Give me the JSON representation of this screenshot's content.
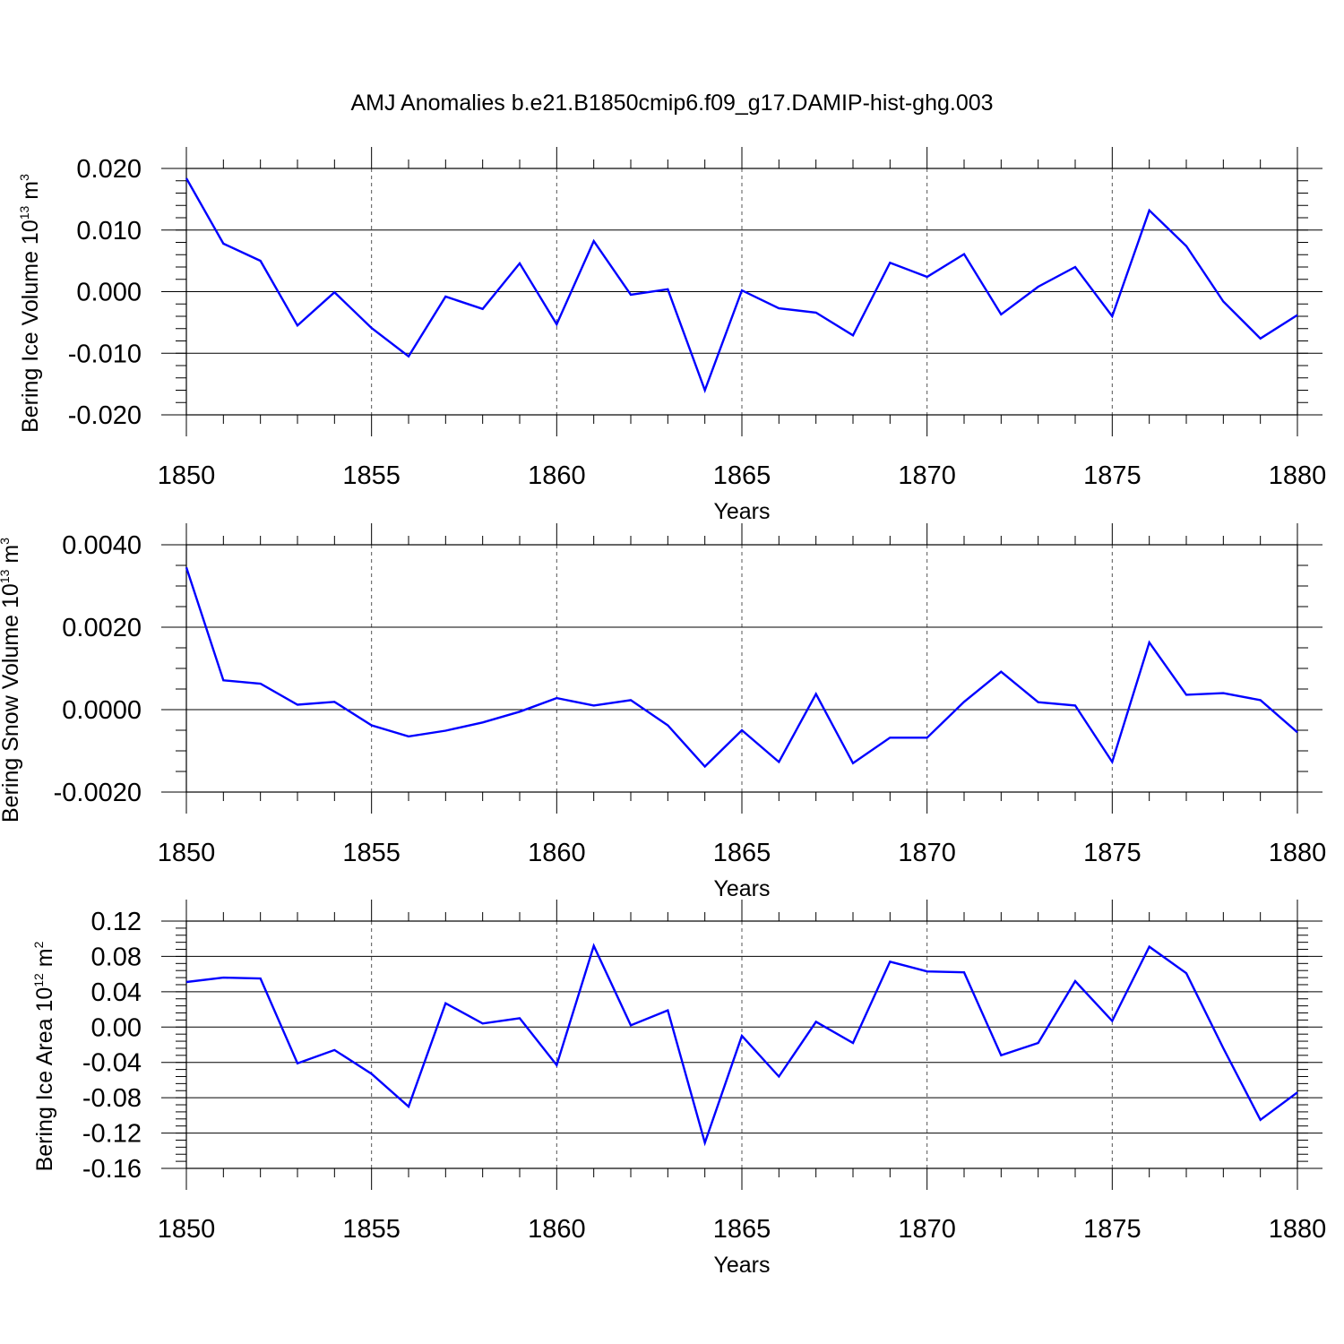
{
  "figure": {
    "title": "AMJ Anomalies b.e21.B1850cmip6.f09_g17.DAMIP-hist-ghg.003"
  },
  "chart_data": [
    {
      "type": "line",
      "ylabel": "Bering Ice Volume 10",
      "ylabel_sup": "13",
      "ylabel_unit": " m",
      "ylabel_unit_sup": "3",
      "xlabel": "Years",
      "xlim": [
        1850,
        1880
      ],
      "ylim": [
        -0.02,
        0.02
      ],
      "x_ticks": [
        1850,
        1855,
        1860,
        1865,
        1870,
        1875,
        1880
      ],
      "y_ticks": [
        -0.02,
        -0.01,
        0.0,
        0.01,
        0.02
      ],
      "y_tick_labels": [
        "-0.020",
        "-0.010",
        "0.000",
        "0.010",
        "0.020"
      ],
      "y_minor_step": 0.002,
      "grid": "vertical dashed at major x ticks",
      "line_color": "#0000ff",
      "series": [
        {
          "x": [
            1850,
            1851,
            1852,
            1853,
            1854,
            1855,
            1856,
            1857,
            1858,
            1859,
            1860,
            1861,
            1862,
            1863,
            1864,
            1865,
            1866,
            1867,
            1868,
            1869,
            1870,
            1871,
            1872,
            1873,
            1874,
            1875,
            1876,
            1877,
            1878,
            1879,
            1880
          ],
          "values": [
            0.0184,
            0.0078,
            0.005,
            -0.0055,
            -0.0001,
            -0.0059,
            -0.0105,
            -0.0008,
            -0.0028,
            0.0046,
            -0.0053,
            0.0082,
            -0.0005,
            0.0004,
            -0.016,
            0.0002,
            -0.0027,
            -0.0034,
            -0.0071,
            0.0047,
            0.0024,
            0.0061,
            -0.0037,
            0.0008,
            0.004,
            -0.004,
            0.0132,
            0.0074,
            -0.0016,
            -0.0076,
            -0.0038
          ]
        }
      ]
    },
    {
      "type": "line",
      "ylabel": "Bering Snow Volume 10",
      "ylabel_sup": "13",
      "ylabel_unit": " m",
      "ylabel_unit_sup": "3",
      "xlabel": "Years",
      "xlim": [
        1850,
        1880
      ],
      "ylim": [
        -0.002,
        0.004
      ],
      "x_ticks": [
        1850,
        1855,
        1860,
        1865,
        1870,
        1875,
        1880
      ],
      "y_ticks": [
        -0.002,
        0.0,
        0.002,
        0.004
      ],
      "y_tick_labels": [
        "-0.0020",
        "0.0000",
        "0.0020",
        "0.0040"
      ],
      "y_minor_step": 0.0005,
      "grid": "vertical dashed at major x ticks",
      "line_color": "#0000ff",
      "series": [
        {
          "x": [
            1850,
            1851,
            1852,
            1853,
            1854,
            1855,
            1856,
            1857,
            1858,
            1859,
            1860,
            1861,
            1862,
            1863,
            1864,
            1865,
            1866,
            1867,
            1868,
            1869,
            1870,
            1871,
            1872,
            1873,
            1874,
            1875,
            1876,
            1877,
            1878,
            1879,
            1880
          ],
          "values": [
            0.00345,
            0.00071,
            0.00063,
            0.00012,
            0.00019,
            -0.00038,
            -0.00065,
            -0.00051,
            -0.00031,
            -5e-05,
            0.00028,
            0.0001,
            0.00023,
            -0.00038,
            -0.00138,
            -0.0005,
            -0.00127,
            0.00038,
            -0.0013,
            -0.00068,
            -0.00068,
            0.00019,
            0.00092,
            0.00018,
            0.0001,
            -0.00127,
            0.00163,
            0.00036,
            0.0004,
            0.00023,
            -0.00055
          ]
        }
      ]
    },
    {
      "type": "line",
      "ylabel": "Bering Ice Area 10",
      "ylabel_sup": "12",
      "ylabel_unit": " m",
      "ylabel_unit_sup": "2",
      "xlabel": "Years",
      "xlim": [
        1850,
        1880
      ],
      "ylim": [
        -0.16,
        0.12
      ],
      "x_ticks": [
        1850,
        1855,
        1860,
        1865,
        1870,
        1875,
        1880
      ],
      "y_ticks": [
        -0.16,
        -0.12,
        -0.08,
        -0.04,
        0.0,
        0.04,
        0.08,
        0.12
      ],
      "y_tick_labels": [
        "-0.16",
        "-0.12",
        "-0.08",
        "-0.04",
        "0.00",
        "0.04",
        "0.08",
        "0.12"
      ],
      "y_minor_step": 0.008,
      "grid": "vertical dashed at major x ticks",
      "line_color": "#0000ff",
      "series": [
        {
          "x": [
            1850,
            1851,
            1852,
            1853,
            1854,
            1855,
            1856,
            1857,
            1858,
            1859,
            1860,
            1861,
            1862,
            1863,
            1864,
            1865,
            1866,
            1867,
            1868,
            1869,
            1870,
            1871,
            1872,
            1873,
            1874,
            1875,
            1876,
            1877,
            1878,
            1879,
            1880
          ],
          "values": [
            0.051,
            0.056,
            0.055,
            -0.041,
            -0.026,
            -0.053,
            -0.09,
            0.027,
            0.004,
            0.01,
            -0.043,
            0.092,
            0.002,
            0.019,
            -0.131,
            -0.01,
            -0.056,
            0.006,
            -0.018,
            0.074,
            0.063,
            0.062,
            -0.032,
            -0.018,
            0.052,
            0.007,
            0.091,
            0.061,
            -0.024,
            -0.105,
            -0.074
          ]
        }
      ]
    }
  ]
}
